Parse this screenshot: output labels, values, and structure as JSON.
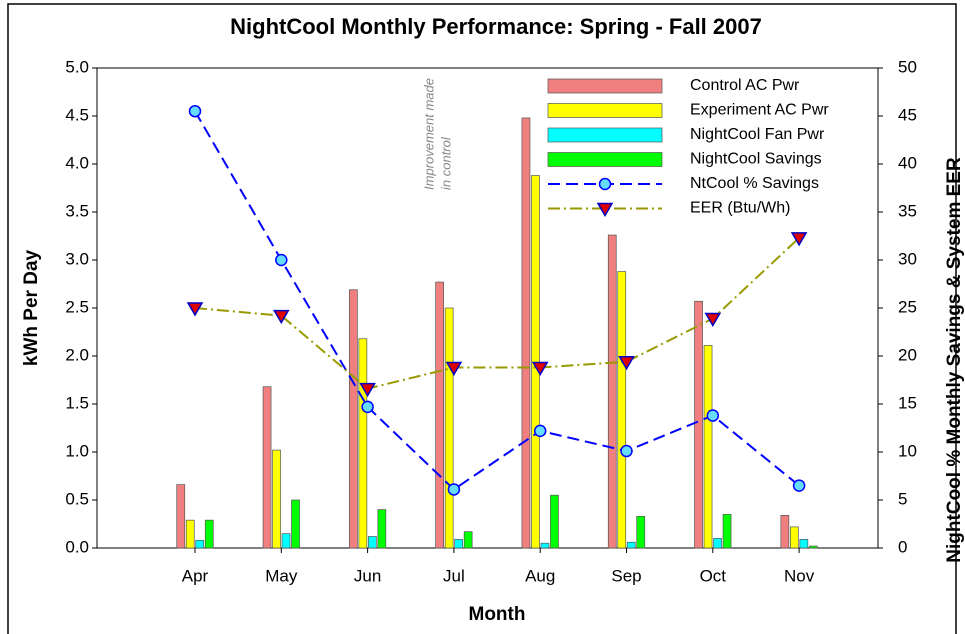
{
  "chart_data": {
    "type": "bar-line",
    "title": "NightCool Monthly Performance: Spring - Fall 2007",
    "x_label": "Month",
    "y_label": "kWh Per Day",
    "y2_label": "NightCool % Monthly Savings & System EER",
    "annotation": [
      "Improvement made",
      "in control"
    ],
    "categories": [
      "Apr",
      "May",
      "Jun",
      "Jul",
      "Aug",
      "Sep",
      "Oct",
      "Nov"
    ],
    "ylim": [
      0,
      5
    ],
    "yticks": [
      {
        "value": 0,
        "label": "0.0"
      },
      {
        "value": 0.5,
        "label": "0.5"
      },
      {
        "value": 1,
        "label": "1.0"
      },
      {
        "value": 1.5,
        "label": "1.5"
      },
      {
        "value": 2,
        "label": "2.0"
      },
      {
        "value": 2.5,
        "label": "2.5"
      },
      {
        "value": 3,
        "label": "3.0"
      },
      {
        "value": 3.5,
        "label": "3.5"
      },
      {
        "value": 4,
        "label": "4.0"
      },
      {
        "value": 4.5,
        "label": "4.5"
      },
      {
        "value": 5,
        "label": "5.0"
      }
    ],
    "y2lim": [
      0,
      50
    ],
    "y2ticks": [
      0,
      5,
      10,
      15,
      20,
      25,
      30,
      35,
      40,
      45,
      50
    ],
    "legend": "upper right",
    "series": [
      {
        "name": "Control AC Pwr",
        "kind": "bar",
        "color": "#f08080",
        "values": [
          0.66,
          1.68,
          2.69,
          2.77,
          4.48,
          3.26,
          2.57,
          0.34
        ]
      },
      {
        "name": "Experiment AC Pwr",
        "kind": "bar",
        "color": "#ffff00",
        "values": [
          0.29,
          1.02,
          2.18,
          2.5,
          3.88,
          2.88,
          2.11,
          0.22
        ]
      },
      {
        "name": "NightCool Fan Pwr",
        "kind": "bar",
        "color": "#00ffff",
        "values": [
          0.08,
          0.15,
          0.12,
          0.09,
          0.05,
          0.06,
          0.1,
          0.09
        ]
      },
      {
        "name": "NightCool Savings",
        "kind": "bar",
        "color": "#00ff00",
        "values": [
          0.29,
          0.5,
          0.4,
          0.17,
          0.55,
          0.33,
          0.35,
          0.02
        ]
      },
      {
        "name": "NtCool % Savings",
        "kind": "line",
        "axis": "y2",
        "color": "#0000ff",
        "dash": "12 6",
        "marker": "circle",
        "marker_color": "#66ddff",
        "values": [
          45.5,
          30,
          14.7,
          6.1,
          12.2,
          10.1,
          13.8,
          6.5
        ]
      },
      {
        "name": "EER (Btu/Wh)",
        "kind": "line",
        "axis": "y2",
        "color": "#999900",
        "dash": "12 4 2 4",
        "marker": "triangle",
        "marker_color": "#dd0000",
        "values": [
          25,
          24.2,
          16.6,
          18.8,
          18.8,
          19.4,
          23.9,
          32.3
        ]
      }
    ]
  }
}
